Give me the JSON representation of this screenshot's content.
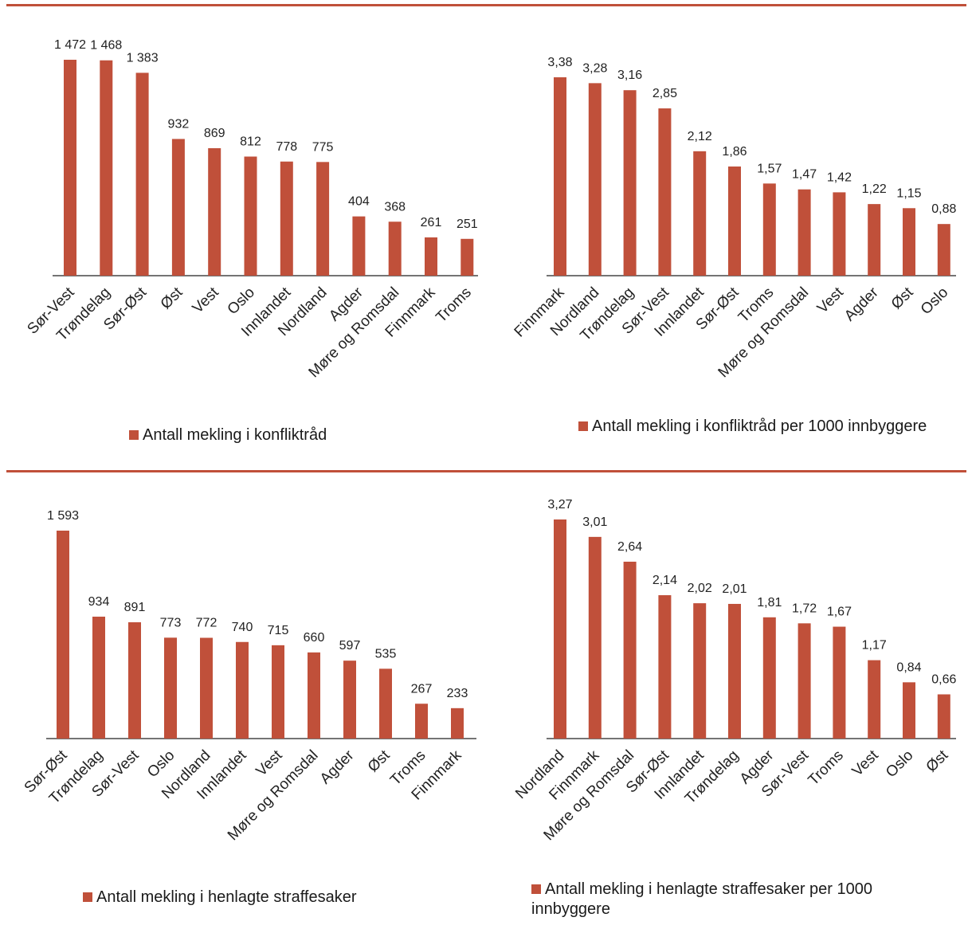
{
  "colors": {
    "bar": "#c0503a",
    "rule": "#c0503a",
    "axis": "#222222"
  },
  "chart_data": [
    {
      "type": "bar",
      "title": "",
      "legend": "Antall mekling i konfliktråd",
      "legend_position": "bottom",
      "grid": false,
      "categories": [
        "Sør-Vest",
        "Trøndelag",
        "Sør-Øst",
        "Øst",
        "Vest",
        "Oslo",
        "Innlandet",
        "Nordland",
        "Agder",
        "Møre og Romsdal",
        "Finnmark",
        "Troms"
      ],
      "values": [
        1472,
        1468,
        1383,
        932,
        869,
        812,
        778,
        775,
        404,
        368,
        261,
        251
      ],
      "value_labels": [
        "1 472",
        "1 468",
        "1 383",
        "932",
        "869",
        "812",
        "778",
        "775",
        "404",
        "368",
        "261",
        "251"
      ],
      "ylim": [
        0,
        1472
      ]
    },
    {
      "type": "bar",
      "title": "",
      "legend": "Antall mekling i konfliktråd per 1000 innbyggere",
      "legend_position": "bottom",
      "grid": false,
      "categories": [
        "Finnmark",
        "Nordland",
        "Trøndelag",
        "Sør-Vest",
        "Innlandet",
        "Sør-Øst",
        "Troms",
        "Møre og Romsdal",
        "Vest",
        "Agder",
        "Øst",
        "Oslo"
      ],
      "values": [
        3.38,
        3.28,
        3.16,
        2.85,
        2.12,
        1.86,
        1.57,
        1.47,
        1.42,
        1.22,
        1.15,
        0.88
      ],
      "value_labels": [
        "3,38",
        "3,28",
        "3,16",
        "2,85",
        "2,12",
        "1,86",
        "1,57",
        "1,47",
        "1,42",
        "1,22",
        "1,15",
        "0,88"
      ],
      "ylim": [
        0,
        3.38
      ]
    },
    {
      "type": "bar",
      "title": "",
      "legend": "Antall mekling i henlagte straffesaker",
      "legend_position": "bottom",
      "grid": false,
      "categories": [
        "Sør-Øst",
        "Trøndelag",
        "Sør-Vest",
        "Oslo",
        "Nordland",
        "Innlandet",
        "Vest",
        "Møre og Romsdal",
        "Agder",
        "Øst",
        "Troms",
        "Finnmark"
      ],
      "values": [
        1593,
        934,
        891,
        773,
        772,
        740,
        715,
        660,
        597,
        535,
        267,
        233
      ],
      "value_labels": [
        "1 593",
        "934",
        "891",
        "773",
        "772",
        "740",
        "715",
        "660",
        "597",
        "535",
        "267",
        "233"
      ],
      "ylim": [
        0,
        1593
      ]
    },
    {
      "type": "bar",
      "title": "",
      "legend": "Antall mekling i henlagte straffesaker per 1000 innbyggere",
      "legend_position": "bottom",
      "grid": false,
      "categories": [
        "Nordland",
        "Finnmark",
        "Møre og Romsdal",
        "Sør-Øst",
        "Innlandet",
        "Trøndelag",
        "Agder",
        "Sør-Vest",
        "Troms",
        "Vest",
        "Oslo",
        "Øst"
      ],
      "values": [
        3.27,
        3.01,
        2.64,
        2.14,
        2.02,
        2.01,
        1.81,
        1.72,
        1.67,
        1.17,
        0.84,
        0.66
      ],
      "value_labels": [
        "3,27",
        "3,01",
        "2,64",
        "2,14",
        "2,02",
        "2,01",
        "1,81",
        "1,72",
        "1,67",
        "1,17",
        "0,84",
        "0,66"
      ],
      "ylim": [
        0,
        3.27
      ]
    }
  ]
}
